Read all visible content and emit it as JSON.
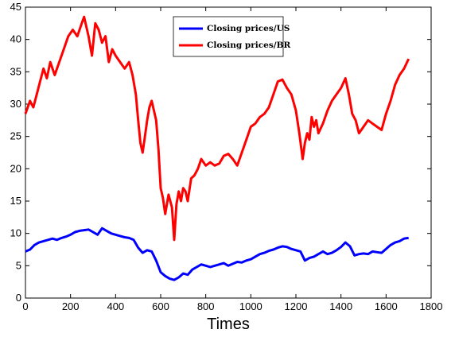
{
  "chart_data": {
    "type": "line",
    "title": "",
    "xlabel": "Times",
    "ylabel": "",
    "xlim": [
      0,
      1800
    ],
    "ylim": [
      0,
      45
    ],
    "xticks": [
      0,
      200,
      400,
      600,
      800,
      1000,
      1200,
      1400,
      1600,
      1800
    ],
    "yticks": [
      0,
      5,
      10,
      15,
      20,
      25,
      30,
      35,
      40,
      45
    ],
    "grid": false,
    "legend_position": "top-center",
    "series": [
      {
        "name": "Closing prices/US",
        "color": "#0000ff",
        "x": [
          0,
          20,
          40,
          60,
          80,
          100,
          120,
          140,
          160,
          180,
          200,
          220,
          240,
          260,
          280,
          300,
          320,
          340,
          360,
          380,
          400,
          420,
          440,
          460,
          480,
          500,
          520,
          540,
          560,
          580,
          600,
          620,
          640,
          660,
          680,
          700,
          720,
          740,
          760,
          780,
          800,
          820,
          840,
          860,
          880,
          900,
          920,
          940,
          960,
          980,
          1000,
          1020,
          1040,
          1060,
          1080,
          1100,
          1120,
          1140,
          1160,
          1180,
          1200,
          1220,
          1240,
          1260,
          1280,
          1300,
          1320,
          1340,
          1360,
          1380,
          1400,
          1420,
          1440,
          1460,
          1480,
          1500,
          1520,
          1540,
          1560,
          1580,
          1600,
          1620,
          1640,
          1660,
          1680,
          1700
        ],
        "y": [
          7.2,
          7.5,
          8.2,
          8.6,
          8.8,
          9.0,
          9.2,
          9.0,
          9.3,
          9.5,
          9.8,
          10.2,
          10.4,
          10.5,
          10.6,
          10.2,
          9.8,
          10.8,
          10.4,
          10.0,
          9.8,
          9.6,
          9.4,
          9.3,
          9.0,
          7.8,
          7.0,
          7.4,
          7.2,
          5.8,
          4.0,
          3.4,
          3.0,
          2.8,
          3.2,
          3.8,
          3.6,
          4.4,
          4.8,
          5.2,
          5.0,
          4.8,
          5.0,
          5.2,
          5.4,
          5.0,
          5.3,
          5.6,
          5.5,
          5.8,
          6.0,
          6.4,
          6.8,
          7.0,
          7.3,
          7.5,
          7.8,
          8.0,
          7.9,
          7.6,
          7.4,
          7.2,
          5.8,
          6.2,
          6.4,
          6.8,
          7.2,
          6.8,
          7.0,
          7.4,
          7.9,
          8.6,
          8.0,
          6.6,
          6.8,
          6.9,
          6.8,
          7.2,
          7.1,
          7.0,
          7.6,
          8.2,
          8.6,
          8.8,
          9.2,
          9.3
        ]
      },
      {
        "name": "Closing prices/BR",
        "color": "#ff0000",
        "x": [
          0,
          10,
          20,
          35,
          50,
          65,
          80,
          95,
          110,
          130,
          150,
          170,
          190,
          210,
          230,
          250,
          260,
          270,
          280,
          295,
          310,
          325,
          340,
          355,
          370,
          385,
          400,
          420,
          440,
          460,
          475,
          490,
          500,
          510,
          520,
          530,
          540,
          550,
          560,
          570,
          580,
          590,
          600,
          610,
          620,
          635,
          650,
          660,
          670,
          680,
          690,
          700,
          710,
          720,
          735,
          750,
          765,
          780,
          800,
          820,
          840,
          860,
          880,
          900,
          920,
          940,
          960,
          980,
          1000,
          1020,
          1040,
          1060,
          1080,
          1100,
          1120,
          1140,
          1160,
          1180,
          1200,
          1215,
          1230,
          1240,
          1250,
          1260,
          1270,
          1280,
          1290,
          1300,
          1320,
          1340,
          1360,
          1380,
          1400,
          1420,
          1435,
          1450,
          1465,
          1480,
          1500,
          1520,
          1540,
          1560,
          1580,
          1600,
          1620,
          1640,
          1660,
          1680,
          1700
        ],
        "y": [
          28.5,
          29.5,
          30.5,
          29.5,
          31.5,
          33.5,
          35.5,
          34.0,
          36.5,
          34.5,
          36.5,
          38.5,
          40.5,
          41.5,
          40.5,
          42.5,
          43.5,
          42.0,
          40.5,
          37.5,
          42.5,
          41.5,
          39.5,
          40.5,
          36.5,
          38.5,
          37.5,
          36.5,
          35.5,
          36.5,
          34.5,
          31.5,
          27.5,
          24.0,
          22.5,
          25.0,
          27.5,
          29.5,
          30.5,
          29.0,
          27.5,
          23.0,
          17.0,
          15.5,
          13.0,
          16.0,
          14.0,
          9.0,
          14.5,
          16.5,
          15.0,
          17.0,
          16.5,
          15.0,
          18.5,
          19.0,
          20.0,
          21.5,
          20.5,
          21.0,
          20.5,
          20.8,
          22.0,
          22.3,
          21.5,
          20.5,
          22.5,
          24.5,
          26.5,
          27.0,
          28.0,
          28.5,
          29.5,
          31.5,
          33.5,
          33.8,
          32.5,
          31.5,
          29.0,
          25.5,
          21.5,
          24.0,
          25.5,
          24.5,
          28.0,
          26.5,
          27.5,
          25.5,
          27.0,
          29.0,
          30.5,
          31.5,
          32.5,
          34.0,
          31.5,
          28.5,
          27.5,
          25.5,
          26.5,
          27.5,
          27.0,
          26.5,
          26.0,
          28.5,
          30.5,
          33.0,
          34.5,
          35.5,
          37.0
        ]
      }
    ]
  }
}
